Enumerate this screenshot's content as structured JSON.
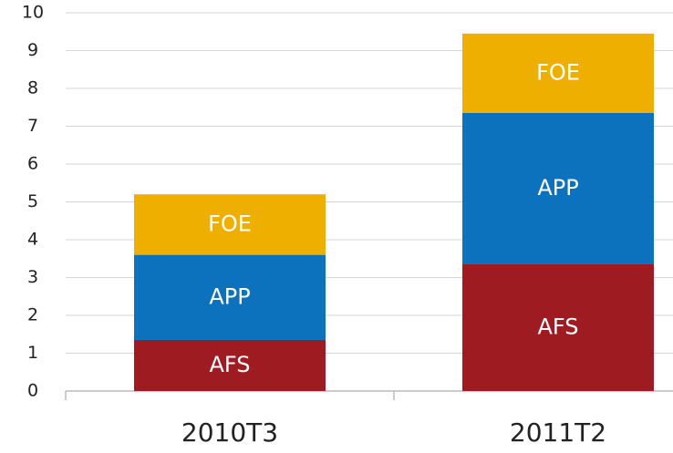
{
  "chart_data": {
    "type": "stacked_bar",
    "categories": [
      "2010T3",
      "2011T2"
    ],
    "series": [
      {
        "name": "AFS",
        "color": "#9e1b22",
        "values": [
          1.35,
          3.35
        ]
      },
      {
        "name": "APP",
        "color": "#0d72bd",
        "values": [
          2.25,
          4.0
        ]
      },
      {
        "name": "FOE",
        "color": "#efaf00",
        "values": [
          1.6,
          2.1
        ]
      }
    ],
    "ylim": [
      0,
      10
    ],
    "yticks": [
      0,
      1,
      2,
      3,
      4,
      5,
      6,
      7,
      8,
      9,
      10
    ],
    "grid": true
  }
}
